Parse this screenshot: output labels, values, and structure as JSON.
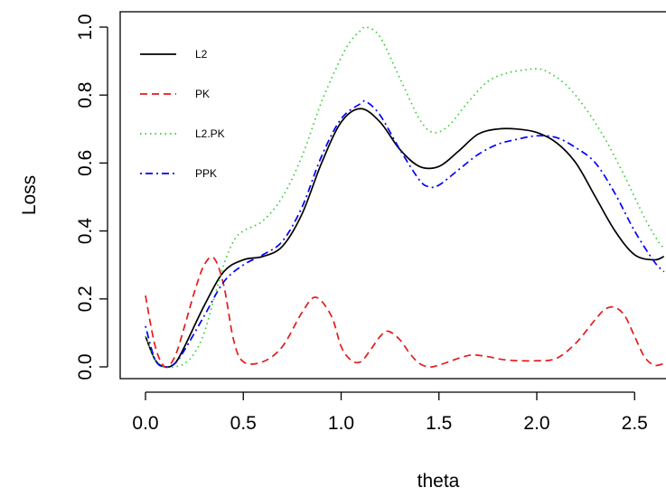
{
  "chart_data": {
    "type": "line",
    "xlabel": "theta",
    "ylabel": "Loss",
    "xlim": [
      -0.12,
      2.65
    ],
    "ylim": [
      -0.04,
      1.04
    ],
    "x_ticks": [
      0.0,
      0.5,
      1.0,
      1.5,
      2.0,
      2.5
    ],
    "x_tick_labels": [
      "0.0",
      "0.5",
      "1.0",
      "1.5",
      "2.0",
      "2.5"
    ],
    "y_ticks": [
      0.0,
      0.2,
      0.4,
      0.6,
      0.8,
      1.0
    ],
    "y_tick_labels": [
      "0.0",
      "0.2",
      "0.4",
      "0.6",
      "0.8",
      "1.0"
    ],
    "grid": false,
    "legend": {
      "position": "top-left",
      "boxed": false
    },
    "series": [
      {
        "name": "L2",
        "color": "#000000",
        "dash": "solid",
        "x": [
          0.0,
          0.05,
          0.1,
          0.15,
          0.2,
          0.3,
          0.4,
          0.5,
          0.6,
          0.7,
          0.8,
          0.9,
          1.0,
          1.1,
          1.2,
          1.3,
          1.4,
          1.5,
          1.6,
          1.7,
          1.8,
          1.9,
          2.0,
          2.1,
          2.2,
          2.3,
          2.4,
          2.5,
          2.6,
          2.65
        ],
        "y": [
          0.09,
          0.02,
          0.0,
          0.01,
          0.06,
          0.18,
          0.28,
          0.315,
          0.325,
          0.355,
          0.45,
          0.6,
          0.72,
          0.76,
          0.72,
          0.64,
          0.59,
          0.59,
          0.635,
          0.685,
          0.7,
          0.7,
          0.69,
          0.66,
          0.6,
          0.5,
          0.4,
          0.33,
          0.315,
          0.325
        ]
      },
      {
        "name": "PK",
        "color": "#e41a1c",
        "dash": "dashed",
        "x": [
          0.0,
          0.05,
          0.1,
          0.15,
          0.2,
          0.25,
          0.3,
          0.35,
          0.4,
          0.45,
          0.5,
          0.6,
          0.7,
          0.8,
          0.87,
          0.95,
          1.0,
          1.05,
          1.1,
          1.15,
          1.2,
          1.24,
          1.3,
          1.35,
          1.4,
          1.45,
          1.5,
          1.6,
          1.67,
          1.75,
          1.85,
          2.0,
          2.1,
          2.2,
          2.3,
          2.35,
          2.4,
          2.45,
          2.5,
          2.55,
          2.6,
          2.65
        ],
        "y": [
          0.21,
          0.06,
          0.0,
          0.03,
          0.12,
          0.22,
          0.3,
          0.32,
          0.24,
          0.08,
          0.015,
          0.015,
          0.06,
          0.16,
          0.205,
          0.15,
          0.06,
          0.02,
          0.015,
          0.05,
          0.09,
          0.105,
          0.08,
          0.04,
          0.01,
          0.0,
          0.005,
          0.025,
          0.035,
          0.03,
          0.02,
          0.018,
          0.025,
          0.07,
          0.14,
          0.17,
          0.175,
          0.15,
          0.09,
          0.03,
          0.005,
          0.01
        ]
      },
      {
        "name": "L2.PK",
        "color": "#33cc33",
        "dash": "dotted",
        "x": [
          0.0,
          0.05,
          0.1,
          0.15,
          0.2,
          0.25,
          0.3,
          0.35,
          0.4,
          0.45,
          0.5,
          0.6,
          0.7,
          0.8,
          0.9,
          1.0,
          1.05,
          1.1,
          1.13,
          1.2,
          1.3,
          1.4,
          1.47,
          1.55,
          1.65,
          1.75,
          1.85,
          1.95,
          2.0,
          2.05,
          2.15,
          2.25,
          2.35,
          2.45,
          2.55,
          2.62,
          2.65
        ],
        "y": [
          0.09,
          0.02,
          0.0,
          0.0,
          0.01,
          0.04,
          0.1,
          0.2,
          0.3,
          0.37,
          0.4,
          0.43,
          0.5,
          0.62,
          0.78,
          0.91,
          0.96,
          0.99,
          1.0,
          0.97,
          0.85,
          0.73,
          0.69,
          0.71,
          0.78,
          0.84,
          0.865,
          0.875,
          0.877,
          0.87,
          0.83,
          0.76,
          0.67,
          0.56,
          0.44,
          0.37,
          0.35
        ]
      },
      {
        "name": "PPK",
        "color": "#0000ff",
        "dash": "dotdash",
        "x": [
          0.0,
          0.05,
          0.1,
          0.15,
          0.2,
          0.3,
          0.4,
          0.5,
          0.6,
          0.7,
          0.8,
          0.9,
          1.0,
          1.1,
          1.13,
          1.2,
          1.3,
          1.4,
          1.45,
          1.5,
          1.6,
          1.7,
          1.8,
          1.9,
          2.0,
          2.1,
          2.2,
          2.3,
          2.4,
          2.5,
          2.6,
          2.65
        ],
        "y": [
          0.12,
          0.02,
          0.0,
          0.01,
          0.05,
          0.15,
          0.25,
          0.3,
          0.33,
          0.37,
          0.47,
          0.62,
          0.73,
          0.775,
          0.78,
          0.74,
          0.64,
          0.55,
          0.53,
          0.535,
          0.58,
          0.625,
          0.655,
          0.67,
          0.68,
          0.675,
          0.645,
          0.6,
          0.51,
          0.4,
          0.31,
          0.28
        ]
      }
    ]
  }
}
